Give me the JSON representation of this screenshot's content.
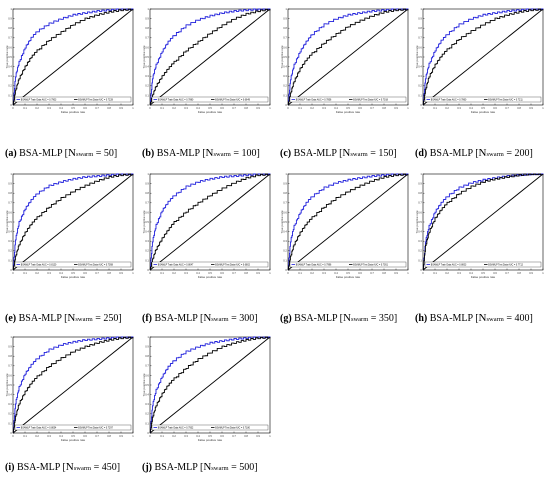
{
  "figure": {
    "panels": [
      {
        "id": "a",
        "label": "(a)",
        "title": "BSA-MLP",
        "n": "50",
        "train_legend": "BSAMLP Train Data AUC = 0.7903",
        "test_legend": "BSAMLP Test Data AUC = 0.7228"
      },
      {
        "id": "b",
        "label": "(b)",
        "title": "BSA-MLP",
        "n": "100",
        "train_legend": "BSAMLP Train Data AUC = 0.7880",
        "test_legend": "BSAMLP Test Data AUC = 0.6649"
      },
      {
        "id": "c",
        "label": "(c)",
        "title": "BSA-MLP",
        "n": "150",
        "train_legend": "BSAMLP Train Data AUC = 0.7856",
        "test_legend": "BSAMLP Test Data AUC = 0.7018"
      },
      {
        "id": "d",
        "label": "(d)",
        "title": "BSA-MLP",
        "n": "200",
        "train_legend": "BSAMLP Train Data AUC = 0.7860",
        "test_legend": "BSAMLP Test Data AUC = 0.7211"
      },
      {
        "id": "e",
        "label": "(e)",
        "title": "BSA-MLP",
        "n": "250",
        "train_legend": "BSAMLP Train Data AUC = 0.8120",
        "test_legend": "BSAMLP Test Data AUC = 0.7058"
      },
      {
        "id": "f",
        "label": "(f)",
        "title": "BSA-MLP",
        "n": "300",
        "train_legend": "BSAMLP Train Data AUC = 0.8047",
        "test_legend": "BSAMLP Test Data AUC = 0.6802"
      },
      {
        "id": "g",
        "label": "(g)",
        "title": "BSA-MLP",
        "n": "350",
        "train_legend": "BSAMLP Train Data AUC = 0.7996",
        "test_legend": "BSAMLP Test Data AUC = 0.7051"
      },
      {
        "id": "h",
        "label": "(h)",
        "title": "BSA-MLP",
        "n": "400",
        "train_legend": "BSAMLP Train Data AUC = 0.8003",
        "test_legend": "BSAMLP Test Data AUC = 0.7712"
      },
      {
        "id": "i",
        "label": "(i)",
        "title": "BSA-MLP",
        "n": "450",
        "train_legend": "BSAMLP Train Data AUC = 0.8054",
        "test_legend": "BSAMLP Test Data AUC = 0.7297"
      },
      {
        "id": "j",
        "label": "(j)",
        "title": "BSA-MLP",
        "n": "500",
        "train_legend": "BSAMLP Train Data AUC = 0.7932",
        "test_legend": "BSAMLP Test Data AUC = 0.7180"
      }
    ],
    "n_symbol": "N",
    "n_subscript": "swarm",
    "xlabel": "False positive rate",
    "ylabel": "True positive rate",
    "xticks": [
      "0",
      "0.1",
      "0.2",
      "0.3",
      "0.4",
      "0.5",
      "0.6",
      "0.7",
      "0.8",
      "0.9",
      "1"
    ],
    "yticks": [
      "0",
      "0.1",
      "0.2",
      "0.3",
      "0.4",
      "0.5",
      "0.6",
      "0.7",
      "0.8",
      "0.9",
      "1"
    ],
    "colors": {
      "train": "#1f1fdc",
      "test": "#000000",
      "diagonal": "#000000"
    }
  },
  "chart_data": [
    {
      "type": "line",
      "panel": "a",
      "xlim": [
        0,
        1
      ],
      "ylim": [
        0,
        1
      ],
      "series": [
        {
          "name": "BSAMLP Train Data AUC = 0.7903",
          "x": [
            0,
            0.02,
            0.05,
            0.1,
            0.15,
            0.2,
            0.3,
            0.4,
            0.5,
            0.6,
            0.7,
            0.8,
            0.9,
            1
          ],
          "y": [
            0,
            0.3,
            0.45,
            0.6,
            0.7,
            0.77,
            0.85,
            0.9,
            0.94,
            0.96,
            0.98,
            0.99,
            1,
            1
          ]
        },
        {
          "name": "BSAMLP Test Data AUC = 0.7228",
          "x": [
            0,
            0.02,
            0.05,
            0.1,
            0.15,
            0.2,
            0.3,
            0.4,
            0.5,
            0.6,
            0.7,
            0.8,
            0.9,
            1
          ],
          "y": [
            0,
            0.15,
            0.28,
            0.4,
            0.5,
            0.57,
            0.68,
            0.76,
            0.84,
            0.9,
            0.94,
            0.97,
            0.99,
            1
          ]
        }
      ]
    },
    {
      "type": "line",
      "panel": "b",
      "xlim": [
        0,
        1
      ],
      "ylim": [
        0,
        1
      ],
      "series": [
        {
          "name": "BSAMLP Train Data AUC = 0.7880",
          "x": [
            0,
            0.02,
            0.05,
            0.1,
            0.15,
            0.2,
            0.3,
            0.4,
            0.5,
            0.6,
            0.7,
            0.8,
            0.9,
            1
          ],
          "y": [
            0,
            0.28,
            0.42,
            0.56,
            0.66,
            0.73,
            0.83,
            0.89,
            0.93,
            0.96,
            0.98,
            0.99,
            1,
            1
          ]
        },
        {
          "name": "BSAMLP Test Data AUC = 0.6649",
          "x": [
            0,
            0.02,
            0.05,
            0.1,
            0.15,
            0.2,
            0.3,
            0.4,
            0.5,
            0.6,
            0.7,
            0.8,
            0.9,
            1
          ],
          "y": [
            0,
            0.1,
            0.2,
            0.3,
            0.38,
            0.45,
            0.57,
            0.66,
            0.75,
            0.83,
            0.9,
            0.95,
            0.98,
            1
          ]
        }
      ]
    },
    {
      "type": "line",
      "panel": "c",
      "xlim": [
        0,
        1
      ],
      "ylim": [
        0,
        1
      ],
      "series": [
        {
          "name": "BSAMLP Train Data AUC = 0.7856",
          "x": [
            0,
            0.02,
            0.05,
            0.1,
            0.15,
            0.2,
            0.3,
            0.4,
            0.5,
            0.6,
            0.7,
            0.8,
            0.9,
            1
          ],
          "y": [
            0,
            0.27,
            0.42,
            0.56,
            0.66,
            0.74,
            0.84,
            0.9,
            0.94,
            0.96,
            0.98,
            0.99,
            1,
            1
          ]
        },
        {
          "name": "BSAMLP Test Data AUC = 0.7018",
          "x": [
            0,
            0.02,
            0.05,
            0.1,
            0.15,
            0.2,
            0.3,
            0.4,
            0.5,
            0.6,
            0.7,
            0.8,
            0.9,
            1
          ],
          "y": [
            0,
            0.12,
            0.25,
            0.38,
            0.47,
            0.54,
            0.65,
            0.74,
            0.82,
            0.88,
            0.93,
            0.97,
            0.99,
            1
          ]
        }
      ]
    },
    {
      "type": "line",
      "panel": "d",
      "xlim": [
        0,
        1
      ],
      "ylim": [
        0,
        1
      ],
      "series": [
        {
          "name": "BSAMLP Train Data AUC = 0.7860",
          "x": [
            0,
            0.02,
            0.05,
            0.1,
            0.15,
            0.2,
            0.3,
            0.4,
            0.5,
            0.6,
            0.7,
            0.8,
            0.9,
            1
          ],
          "y": [
            0,
            0.28,
            0.43,
            0.57,
            0.67,
            0.74,
            0.84,
            0.9,
            0.94,
            0.96,
            0.98,
            0.99,
            1,
            1
          ]
        },
        {
          "name": "BSAMLP Test Data AUC = 0.7211",
          "x": [
            0,
            0.02,
            0.05,
            0.1,
            0.15,
            0.2,
            0.3,
            0.4,
            0.5,
            0.6,
            0.7,
            0.8,
            0.9,
            1
          ],
          "y": [
            0,
            0.16,
            0.3,
            0.42,
            0.51,
            0.58,
            0.69,
            0.77,
            0.84,
            0.9,
            0.94,
            0.97,
            0.99,
            1
          ]
        }
      ]
    },
    {
      "type": "line",
      "panel": "e",
      "xlim": [
        0,
        1
      ],
      "ylim": [
        0,
        1
      ],
      "series": [
        {
          "name": "BSAMLP Train Data AUC = 0.8120",
          "x": [
            0,
            0.02,
            0.05,
            0.1,
            0.15,
            0.2,
            0.3,
            0.4,
            0.5,
            0.6,
            0.7,
            0.8,
            0.9,
            1
          ],
          "y": [
            0,
            0.32,
            0.5,
            0.64,
            0.73,
            0.8,
            0.88,
            0.92,
            0.95,
            0.97,
            0.98,
            0.99,
            1,
            1
          ]
        },
        {
          "name": "BSAMLP Test Data AUC = 0.7058",
          "x": [
            0,
            0.02,
            0.05,
            0.1,
            0.15,
            0.2,
            0.3,
            0.4,
            0.5,
            0.6,
            0.7,
            0.8,
            0.9,
            1
          ],
          "y": [
            0,
            0.14,
            0.27,
            0.39,
            0.48,
            0.55,
            0.66,
            0.75,
            0.82,
            0.88,
            0.93,
            0.97,
            0.99,
            1
          ]
        }
      ]
    },
    {
      "type": "line",
      "panel": "f",
      "xlim": [
        0,
        1
      ],
      "ylim": [
        0,
        1
      ],
      "series": [
        {
          "name": "BSAMLP Train Data AUC = 0.8047",
          "x": [
            0,
            0.02,
            0.05,
            0.1,
            0.15,
            0.2,
            0.3,
            0.4,
            0.5,
            0.6,
            0.7,
            0.8,
            0.9,
            1
          ],
          "y": [
            0,
            0.3,
            0.47,
            0.62,
            0.71,
            0.78,
            0.87,
            0.92,
            0.95,
            0.97,
            0.98,
            0.99,
            1,
            1
          ]
        },
        {
          "name": "BSAMLP Test Data AUC = 0.6802",
          "x": [
            0,
            0.02,
            0.05,
            0.1,
            0.15,
            0.2,
            0.3,
            0.4,
            0.5,
            0.6,
            0.7,
            0.8,
            0.9,
            1
          ],
          "y": [
            0,
            0.11,
            0.22,
            0.33,
            0.42,
            0.5,
            0.61,
            0.7,
            0.78,
            0.85,
            0.91,
            0.96,
            0.99,
            1
          ]
        }
      ]
    },
    {
      "type": "line",
      "panel": "g",
      "xlim": [
        0,
        1
      ],
      "ylim": [
        0,
        1
      ],
      "series": [
        {
          "name": "BSAMLP Train Data AUC = 0.7996",
          "x": [
            0,
            0.02,
            0.05,
            0.1,
            0.15,
            0.2,
            0.3,
            0.4,
            0.5,
            0.6,
            0.7,
            0.8,
            0.9,
            1
          ],
          "y": [
            0,
            0.3,
            0.46,
            0.6,
            0.7,
            0.77,
            0.86,
            0.91,
            0.94,
            0.96,
            0.98,
            0.99,
            1,
            1
          ]
        },
        {
          "name": "BSAMLP Test Data AUC = 0.7051",
          "x": [
            0,
            0.02,
            0.05,
            0.1,
            0.15,
            0.2,
            0.3,
            0.4,
            0.5,
            0.6,
            0.7,
            0.8,
            0.9,
            1
          ],
          "y": [
            0,
            0.14,
            0.27,
            0.39,
            0.48,
            0.55,
            0.66,
            0.75,
            0.82,
            0.88,
            0.93,
            0.97,
            0.99,
            1
          ]
        }
      ]
    },
    {
      "type": "line",
      "panel": "h",
      "xlim": [
        0,
        1
      ],
      "ylim": [
        0,
        1
      ],
      "series": [
        {
          "name": "BSAMLP Train Data AUC = 0.8003",
          "x": [
            0,
            0.02,
            0.05,
            0.1,
            0.15,
            0.2,
            0.3,
            0.4,
            0.5,
            0.6,
            0.7,
            0.8,
            0.9,
            1
          ],
          "y": [
            0,
            0.3,
            0.46,
            0.61,
            0.7,
            0.77,
            0.86,
            0.91,
            0.94,
            0.96,
            0.98,
            0.99,
            1,
            1
          ]
        },
        {
          "name": "BSAMLP Test Data AUC = 0.7712",
          "x": [
            0,
            0.02,
            0.05,
            0.1,
            0.15,
            0.2,
            0.3,
            0.4,
            0.5,
            0.6,
            0.7,
            0.8,
            0.9,
            1
          ],
          "y": [
            0,
            0.25,
            0.4,
            0.54,
            0.63,
            0.7,
            0.8,
            0.87,
            0.92,
            0.95,
            0.97,
            0.99,
            1,
            1
          ]
        }
      ]
    },
    {
      "type": "line",
      "panel": "i",
      "xlim": [
        0,
        1
      ],
      "ylim": [
        0,
        1
      ],
      "series": [
        {
          "name": "BSAMLP Train Data AUC = 0.8054",
          "x": [
            0,
            0.02,
            0.05,
            0.1,
            0.15,
            0.2,
            0.3,
            0.4,
            0.5,
            0.6,
            0.7,
            0.8,
            0.9,
            1
          ],
          "y": [
            0,
            0.31,
            0.48,
            0.62,
            0.71,
            0.78,
            0.87,
            0.92,
            0.95,
            0.97,
            0.98,
            0.99,
            1,
            1
          ]
        },
        {
          "name": "BSAMLP Test Data AUC = 0.7297",
          "x": [
            0,
            0.02,
            0.05,
            0.1,
            0.15,
            0.2,
            0.3,
            0.4,
            0.5,
            0.6,
            0.7,
            0.8,
            0.9,
            1
          ],
          "y": [
            0,
            0.17,
            0.31,
            0.43,
            0.52,
            0.59,
            0.7,
            0.78,
            0.85,
            0.9,
            0.94,
            0.97,
            0.99,
            1
          ]
        }
      ]
    },
    {
      "type": "line",
      "panel": "j",
      "xlim": [
        0,
        1
      ],
      "ylim": [
        0,
        1
      ],
      "series": [
        {
          "name": "BSAMLP Train Data AUC = 0.7932",
          "x": [
            0,
            0.02,
            0.05,
            0.1,
            0.15,
            0.2,
            0.3,
            0.4,
            0.5,
            0.6,
            0.7,
            0.8,
            0.9,
            1
          ],
          "y": [
            0,
            0.29,
            0.45,
            0.59,
            0.69,
            0.76,
            0.85,
            0.9,
            0.94,
            0.96,
            0.98,
            0.99,
            1,
            1
          ]
        },
        {
          "name": "BSAMLP Test Data AUC = 0.7180",
          "x": [
            0,
            0.02,
            0.05,
            0.1,
            0.15,
            0.2,
            0.3,
            0.4,
            0.5,
            0.6,
            0.7,
            0.8,
            0.9,
            1
          ],
          "y": [
            0,
            0.16,
            0.29,
            0.41,
            0.5,
            0.57,
            0.68,
            0.77,
            0.84,
            0.9,
            0.94,
            0.97,
            0.99,
            1
          ]
        }
      ]
    }
  ]
}
